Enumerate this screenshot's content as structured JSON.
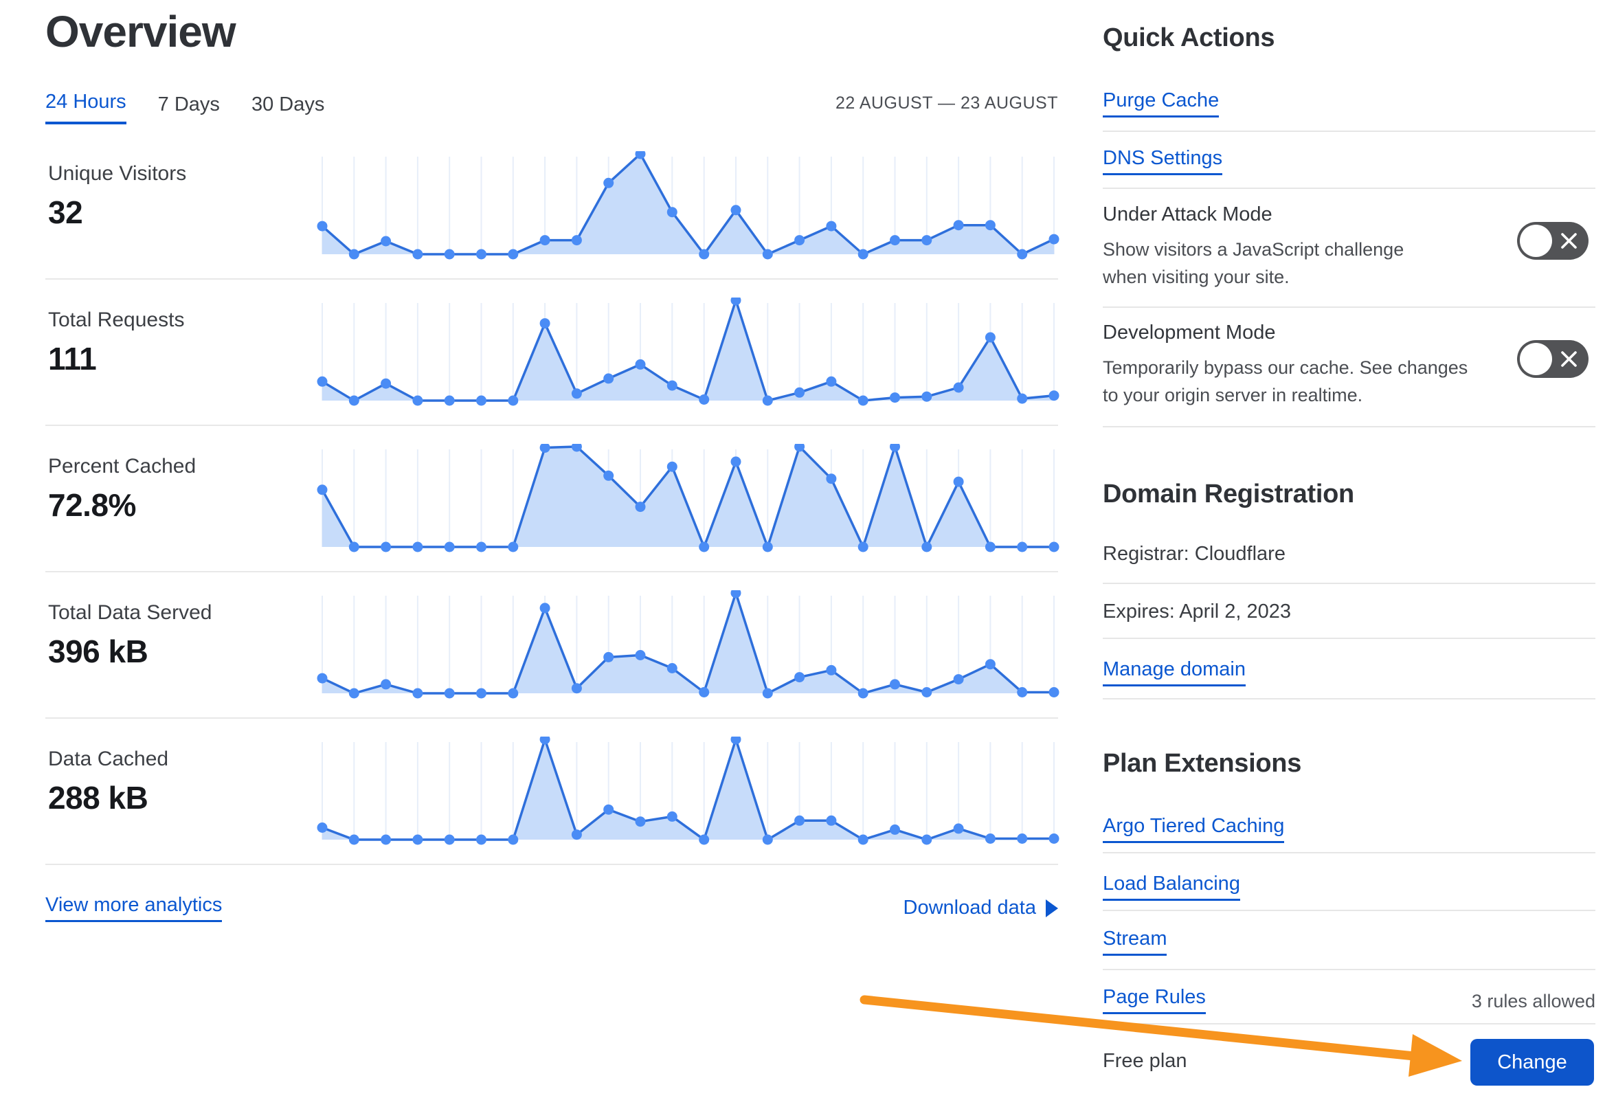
{
  "page": {
    "title": "Overview"
  },
  "tabs": [
    {
      "label": "24 Hours",
      "active": true
    },
    {
      "label": "7 Days",
      "active": false
    },
    {
      "label": "30 Days",
      "active": false
    }
  ],
  "date_range": "22 AUGUST — 23 AUGUST",
  "metrics": [
    {
      "label": "Unique Visitors",
      "value": "32"
    },
    {
      "label": "Total Requests",
      "value": "111"
    },
    {
      "label": "Percent Cached",
      "value": "72.8%"
    },
    {
      "label": "Total Data Served",
      "value": "396 kB"
    },
    {
      "label": "Data Cached",
      "value": "288 kB"
    }
  ],
  "footer": {
    "view_more": "View more analytics",
    "download": "Download data"
  },
  "sidebar": {
    "quick_actions": {
      "title": "Quick Actions",
      "links": [
        "Purge Cache",
        "DNS Settings"
      ],
      "toggles": [
        {
          "title": "Under Attack Mode",
          "description": "Show visitors a JavaScript challenge when visiting your site.",
          "state": "off"
        },
        {
          "title": "Development Mode",
          "description": "Temporarily bypass our cache. See changes to your origin server in realtime.",
          "state": "off"
        }
      ]
    },
    "domain_registration": {
      "title": "Domain Registration",
      "registrar": "Registrar: Cloudflare",
      "expires": "Expires: April 2, 2023",
      "manage_link": "Manage domain"
    },
    "plan_extensions": {
      "title": "Plan Extensions",
      "links": [
        "Argo Tiered Caching",
        "Load Balancing",
        "Stream",
        "Page Rules"
      ],
      "page_rules_note": "3 rules allowed",
      "plan_label": "Free plan",
      "change_button": "Change"
    }
  },
  "chart_data": [
    {
      "type": "area",
      "label": "Unique Visitors",
      "summary_value": "32",
      "x_range": "22 AUGUST — 23 AUGUST",
      "value_scale": "relative sparkline height, 0-10 (axes unlabeled)",
      "values": [
        2.8,
        0,
        1.3,
        0,
        0,
        0,
        0,
        1.4,
        1.4,
        7.1,
        10,
        4.2,
        0,
        4.4,
        0,
        1.4,
        2.8,
        0,
        1.4,
        1.4,
        2.9,
        2.9,
        0,
        1.5
      ]
    },
    {
      "type": "area",
      "label": "Total Requests",
      "summary_value": "111",
      "x_range": "22 AUGUST — 23 AUGUST",
      "value_scale": "relative sparkline height, 0-10 (axes unlabeled)",
      "values": [
        1.9,
        0,
        1.7,
        0,
        0,
        0,
        0,
        7.7,
        0.7,
        2.2,
        3.6,
        1.5,
        0.1,
        10,
        0,
        0.8,
        1.9,
        0,
        0.3,
        0.4,
        1.3,
        6.3,
        0.2,
        0.5
      ]
    },
    {
      "type": "area",
      "label": "Percent Cached",
      "summary_value": "72.8%",
      "x_range": "22 AUGUST — 23 AUGUST",
      "value_scale": "relative sparkline height, 0-10 (axes unlabeled)",
      "values": [
        5.7,
        0,
        0,
        0,
        0,
        0,
        0,
        9.9,
        10,
        7.1,
        4,
        8,
        0,
        8.5,
        0,
        10,
        6.8,
        0,
        10,
        0,
        6.5,
        0,
        0,
        0
      ]
    },
    {
      "type": "area",
      "label": "Total Data Served",
      "summary_value": "396 kB",
      "x_range": "22 AUGUST — 23 AUGUST",
      "value_scale": "relative sparkline height, 0-10 (axes unlabeled)",
      "values": [
        1.5,
        0,
        0.9,
        0,
        0,
        0,
        0,
        8.5,
        0.5,
        3.6,
        3.8,
        2.5,
        0.1,
        10,
        0,
        1.6,
        2.3,
        0,
        0.9,
        0.1,
        1.4,
        2.9,
        0.1,
        0.1
      ]
    },
    {
      "type": "area",
      "label": "Data Cached",
      "summary_value": "288 kB",
      "x_range": "22 AUGUST — 23 AUGUST",
      "value_scale": "relative sparkline height, 0-10 (axes unlabeled)",
      "values": [
        1.2,
        0,
        0,
        0,
        0,
        0,
        0,
        10,
        0.5,
        3,
        1.8,
        2.3,
        0,
        10,
        0,
        1.9,
        1.9,
        0,
        1,
        0,
        1.1,
        0.1,
        0.1,
        0.1
      ]
    }
  ],
  "colors": {
    "link_blue": "#0b57d0",
    "button_blue": "#0d55cb",
    "chart_line": "#2e6fdb",
    "chart_dot": "#4a8cf5",
    "chart_fill": "#c7dcfa",
    "chart_grid": "#e7eef9",
    "toggle_bg": "#525356",
    "annotation_orange": "#f7941e",
    "divider": "#e6e6e6"
  }
}
